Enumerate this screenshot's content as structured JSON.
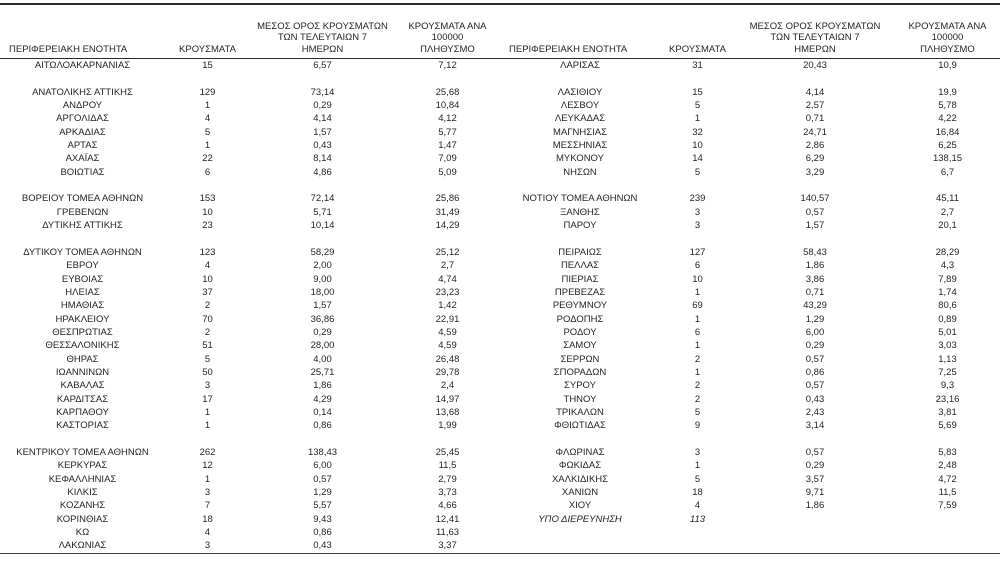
{
  "colors": {
    "text": "#242424",
    "rule": "#2a2a2a",
    "background": "#ffffff"
  },
  "table": {
    "headers": {
      "region": "ΠΕΡΙΦΕΡΕΙΑΚΗ ΕΝΟΤΗΤΑ",
      "cases": "ΚΡΟΥΣΜΑΤΑ",
      "avg7": "ΜΕΣΟΣ ΟΡΟΣ ΚΡΟΥΣΜΑΤΩΝ\nΤΩΝ ΤΕΛΕΥΤΑΙΩΝ 7\nΗΜΕΡΩΝ",
      "per100k": "ΚΡΟΥΣΜΑΤΑ ΑΝΑ 100000\nΠΛΗΘΥΣΜΟ"
    },
    "columns": [
      "region",
      "cases",
      "avg7",
      "per100k"
    ],
    "rows": [
      {
        "left": [
          "ΑΙΤΩΛΟΑΚΑΡΝΑΝΙΑΣ",
          "15",
          "6,57",
          "7,12"
        ],
        "right": [
          "ΛΑΡΙΣΑΣ",
          "31",
          "20,43",
          "10,9"
        ]
      },
      {
        "gap": true
      },
      {
        "left": [
          "ΑΝΑΤΟΛΙΚΗΣ ΑΤΤΙΚΗΣ",
          "129",
          "73,14",
          "25,68"
        ],
        "right": [
          "ΛΑΣΙΘΙΟΥ",
          "15",
          "4,14",
          "19,9"
        ]
      },
      {
        "left": [
          "ΑΝΔΡΟΥ",
          "1",
          "0,29",
          "10,84"
        ],
        "right": [
          "ΛΕΣΒΟΥ",
          "5",
          "2,57",
          "5,78"
        ]
      },
      {
        "left": [
          "ΑΡΓΟΛΙΔΑΣ",
          "4",
          "4,14",
          "4,12"
        ],
        "right": [
          "ΛΕΥΚΑΔΑΣ",
          "1",
          "0,71",
          "4,22"
        ]
      },
      {
        "left": [
          "ΑΡΚΑΔΙΑΣ",
          "5",
          "1,57",
          "5,77"
        ],
        "right": [
          "ΜΑΓΝΗΣΙΑΣ",
          "32",
          "24,71",
          "16,84"
        ]
      },
      {
        "left": [
          "ΑΡΤΑΣ",
          "1",
          "0,43",
          "1,47"
        ],
        "right": [
          "ΜΕΣΣΗΝΙΑΣ",
          "10",
          "2,86",
          "6,25"
        ]
      },
      {
        "left": [
          "ΑΧΑΪΑΣ",
          "22",
          "8,14",
          "7,09"
        ],
        "right": [
          "ΜΥΚΟΝΟΥ",
          "14",
          "6,29",
          "138,15"
        ]
      },
      {
        "left": [
          "ΒΟΙΩΤΙΑΣ",
          "6",
          "4,86",
          "5,09"
        ],
        "right": [
          "ΝΗΣΩΝ",
          "5",
          "3,29",
          "6,7"
        ]
      },
      {
        "gap": true
      },
      {
        "left": [
          "ΒΟΡΕΙΟΥ ΤΟΜΕΑ ΑΘΗΝΩΝ",
          "153",
          "72,14",
          "25,86"
        ],
        "right": [
          "ΝΟΤΙΟΥ ΤΟΜΕΑ ΑΘΗΝΩΝ",
          "239",
          "140,57",
          "45,11"
        ]
      },
      {
        "left": [
          "ΓΡΕΒΕΝΩΝ",
          "10",
          "5,71",
          "31,49"
        ],
        "right": [
          "ΞΑΝΘΗΣ",
          "3",
          "0,57",
          "2,7"
        ]
      },
      {
        "left": [
          "ΔΥΤΙΚΗΣ ΑΤΤΙΚΗΣ",
          "23",
          "10,14",
          "14,29"
        ],
        "right": [
          "ΠΑΡΟΥ",
          "3",
          "1,57",
          "20,1"
        ]
      },
      {
        "gap": true
      },
      {
        "left": [
          "ΔΥΤΙΚΟΥ ΤΟΜΕΑ ΑΘΗΝΩΝ",
          "123",
          "58,29",
          "25,12"
        ],
        "right": [
          "ΠΕΙΡΑΙΩΣ",
          "127",
          "58,43",
          "28,29"
        ]
      },
      {
        "left": [
          "ΕΒΡΟΥ",
          "4",
          "2,00",
          "2,7"
        ],
        "right": [
          "ΠΕΛΛΑΣ",
          "6",
          "1,86",
          "4,3"
        ]
      },
      {
        "left": [
          "ΕΥΒΟΙΑΣ",
          "10",
          "9,00",
          "4,74"
        ],
        "right": [
          "ΠΙΕΡΙΑΣ",
          "10",
          "3,86",
          "7,89"
        ]
      },
      {
        "left": [
          "ΗΛΕΙΑΣ",
          "37",
          "18,00",
          "23,23"
        ],
        "right": [
          "ΠΡΕΒΕΖΑΣ",
          "1",
          "0,71",
          "1,74"
        ]
      },
      {
        "left": [
          "ΗΜΑΘΙΑΣ",
          "2",
          "1,57",
          "1,42"
        ],
        "right": [
          "ΡΕΘΥΜΝΟΥ",
          "69",
          "43,29",
          "80,6"
        ]
      },
      {
        "left": [
          "ΗΡΑΚΛΕΙΟΥ",
          "70",
          "36,86",
          "22,91"
        ],
        "right": [
          "ΡΟΔΟΠΗΣ",
          "1",
          "1,29",
          "0,89"
        ]
      },
      {
        "left": [
          "ΘΕΣΠΡΩΤΙΑΣ",
          "2",
          "0,29",
          "4,59"
        ],
        "right": [
          "ΡΟΔΟΥ",
          "6",
          "6,00",
          "5,01"
        ]
      },
      {
        "left": [
          "ΘΕΣΣΑΛΟΝΙΚΗΣ",
          "51",
          "28,00",
          "4,59"
        ],
        "right": [
          "ΣΑΜΟΥ",
          "1",
          "0,29",
          "3,03"
        ]
      },
      {
        "left": [
          "ΘΗΡΑΣ",
          "5",
          "4,00",
          "26,48"
        ],
        "right": [
          "ΣΕΡΡΩΝ",
          "2",
          "0,57",
          "1,13"
        ]
      },
      {
        "left": [
          "ΙΩΑΝΝΙΝΩΝ",
          "50",
          "25,71",
          "29,78"
        ],
        "right": [
          "ΣΠΟΡΑΔΩΝ",
          "1",
          "0,86",
          "7,25"
        ]
      },
      {
        "left": [
          "ΚΑΒΑΛΑΣ",
          "3",
          "1,86",
          "2,4"
        ],
        "right": [
          "ΣΥΡΟΥ",
          "2",
          "0,57",
          "9,3"
        ]
      },
      {
        "left": [
          "ΚΑΡΔΙΤΣΑΣ",
          "17",
          "4,29",
          "14,97"
        ],
        "right": [
          "ΤΗΝΟΥ",
          "2",
          "0,43",
          "23,16"
        ]
      },
      {
        "left": [
          "ΚΑΡΠΑΘΟΥ",
          "1",
          "0,14",
          "13,68"
        ],
        "right": [
          "ΤΡΙΚΑΛΩΝ",
          "5",
          "2,43",
          "3,81"
        ]
      },
      {
        "left": [
          "ΚΑΣΤΟΡΙΑΣ",
          "1",
          "0,86",
          "1,99"
        ],
        "right": [
          "ΦΘΙΩΤΙΔΑΣ",
          "9",
          "3,14",
          "5,69"
        ]
      },
      {
        "gap": true
      },
      {
        "left": [
          "ΚΕΝΤΡΙΚΟΥ ΤΟΜΕΑ ΑΘΗΝΩΝ",
          "262",
          "138,43",
          "25,45"
        ],
        "right": [
          "ΦΛΩΡΙΝΑΣ",
          "3",
          "0,57",
          "5,83"
        ]
      },
      {
        "left": [
          "ΚΕΡΚΥΡΑΣ",
          "12",
          "6,00",
          "11,5"
        ],
        "right": [
          "ΦΩΚΙΔΑΣ",
          "1",
          "0,29",
          "2,48"
        ]
      },
      {
        "left": [
          "ΚΕΦΑΛΛΗΝΙΑΣ",
          "1",
          "0,57",
          "2,79"
        ],
        "right": [
          "ΧΑΛΚΙΔΙΚΗΣ",
          "5",
          "3,57",
          "4,72"
        ]
      },
      {
        "left": [
          "ΚΙΛΚΙΣ",
          "3",
          "1,29",
          "3,73"
        ],
        "right": [
          "ΧΑΝΙΩΝ",
          "18",
          "9,71",
          "11,5"
        ]
      },
      {
        "left": [
          "ΚΟΖΑΝΗΣ",
          "7",
          "5,57",
          "4,66"
        ],
        "right": [
          "ΧΙΟΥ",
          "4",
          "1,86",
          "7,59"
        ]
      },
      {
        "left": [
          "ΚΟΡΙΝΘΙΑΣ",
          "18",
          "9,43",
          "12,41"
        ],
        "right": [
          "ΥΠΟ ΔΙΕΡΕΥΝΗΣΗ",
          "113",
          "",
          ""
        ],
        "right_italic": true
      },
      {
        "left": [
          "ΚΩ",
          "4",
          "0,86",
          "11,63"
        ],
        "right": [
          "",
          "",
          "",
          ""
        ]
      },
      {
        "left": [
          "ΛΑΚΩΝΙΑΣ",
          "3",
          "0,43",
          "3,37"
        ],
        "right": [
          "",
          "",
          "",
          ""
        ]
      }
    ]
  }
}
